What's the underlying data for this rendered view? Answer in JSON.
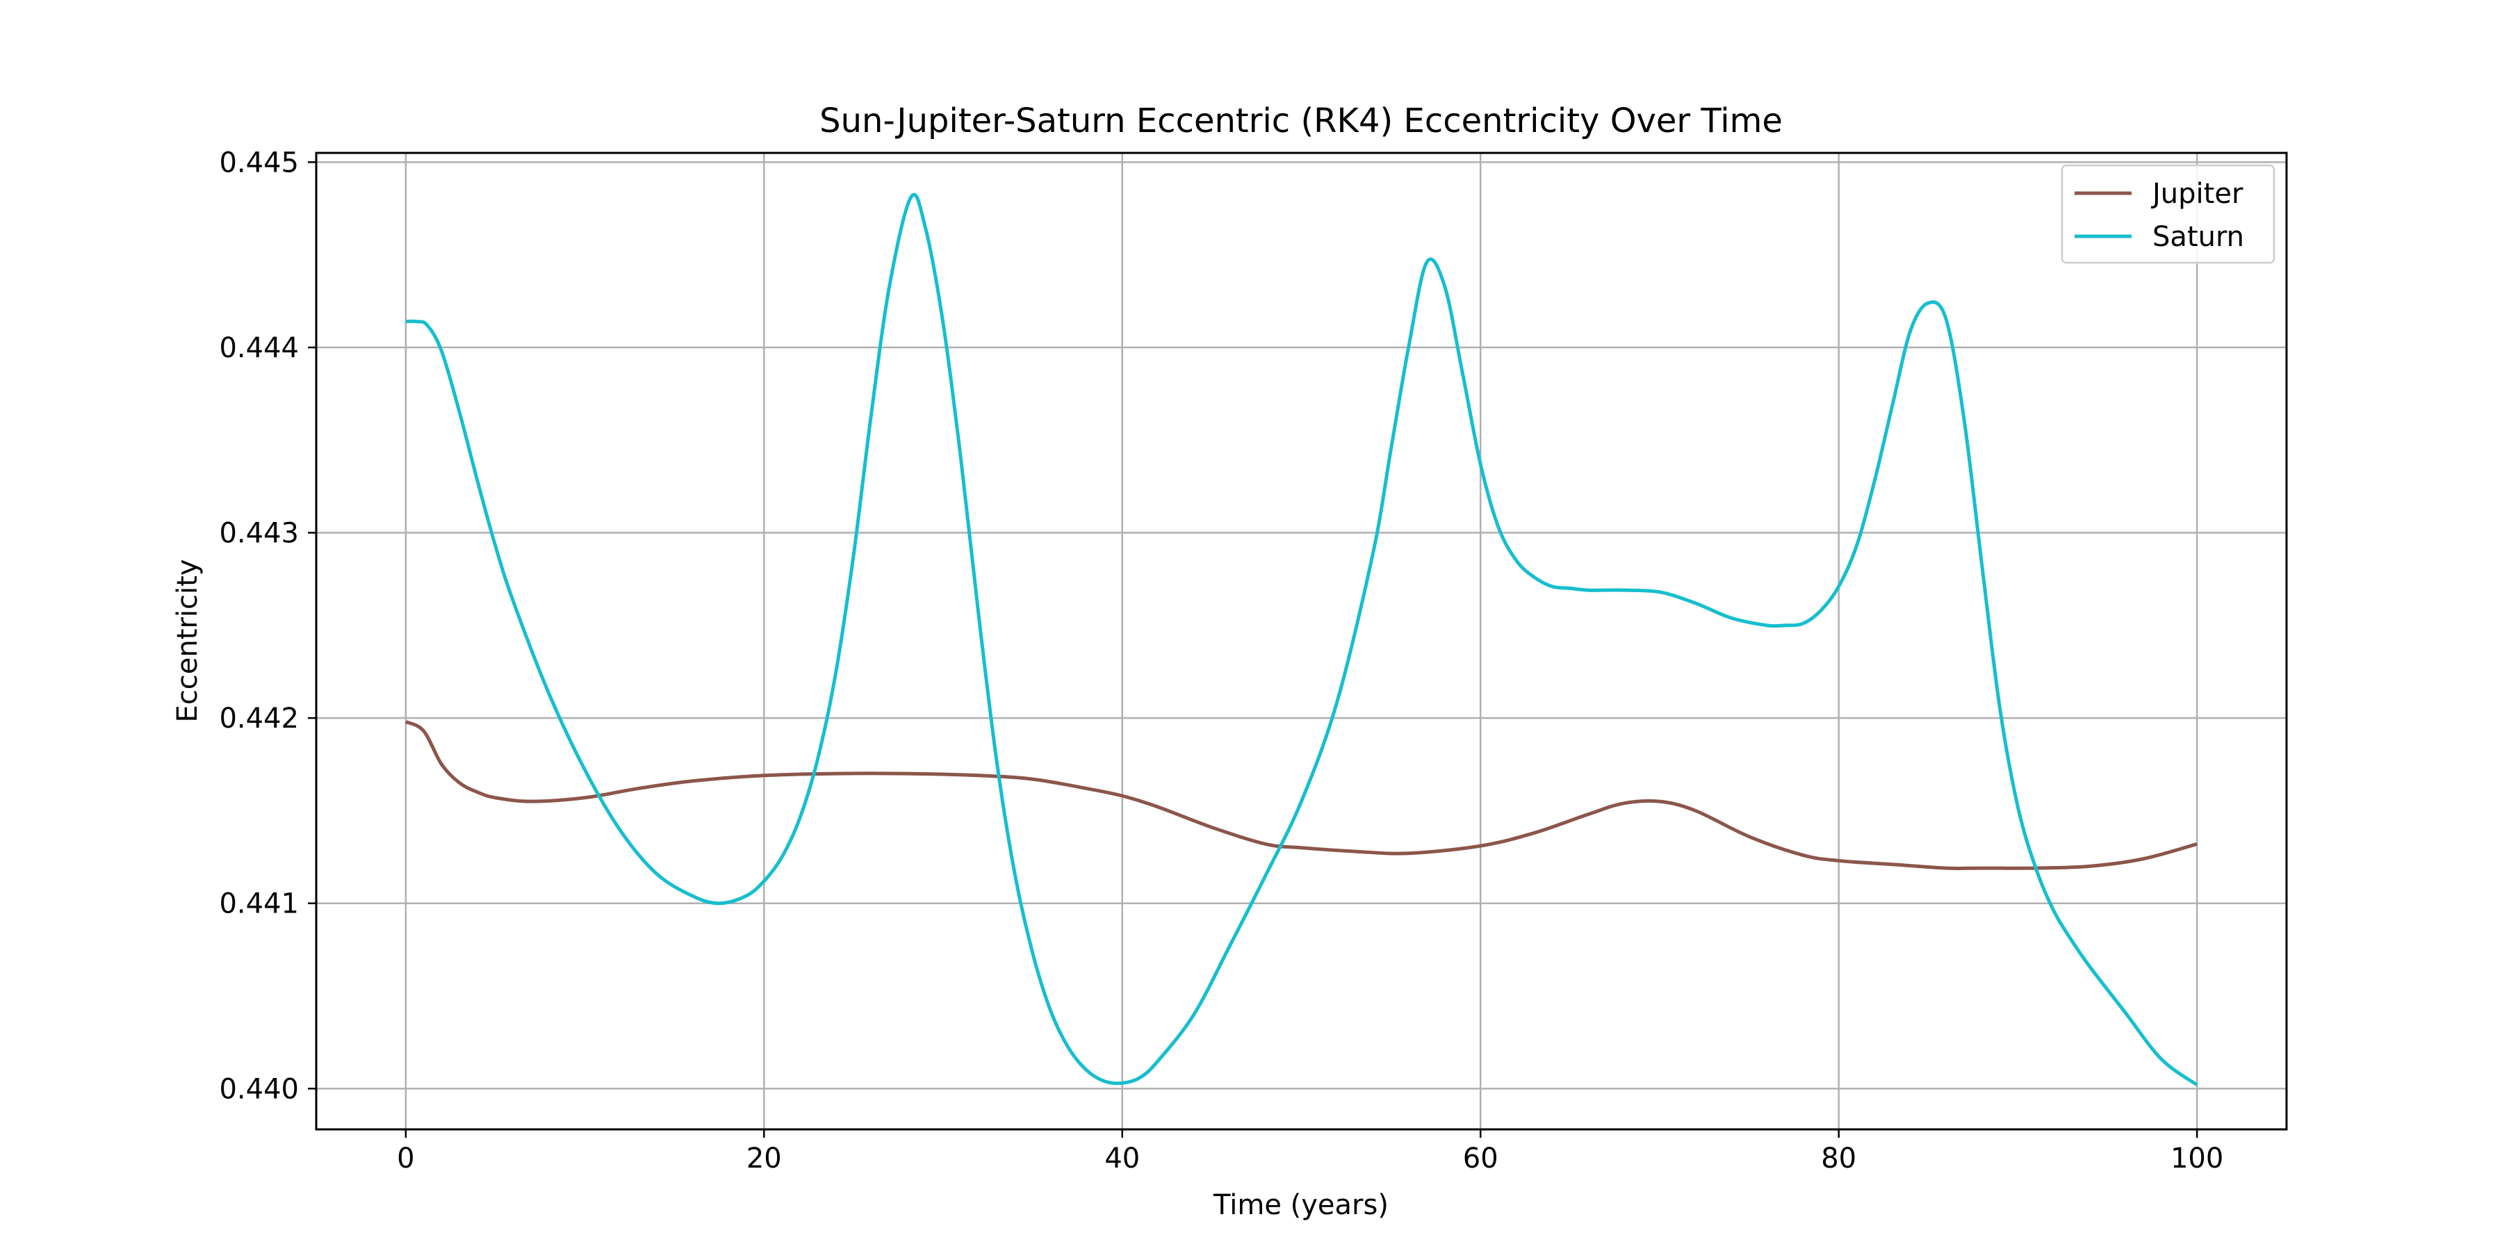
{
  "chart_data": {
    "type": "line",
    "title": "Sun-Jupiter-Saturn Eccentric (RK4) Eccentricity Over Time",
    "xlabel": "Time (years)",
    "ylabel": "Eccentricity",
    "xlim": [
      -5,
      105
    ],
    "ylim": [
      0.43978,
      0.44505
    ],
    "xticks": [
      0,
      20,
      40,
      60,
      80,
      100
    ],
    "yticks": [
      0.44,
      0.441,
      0.442,
      0.443,
      0.444,
      0.445
    ],
    "ytick_labels": [
      "0.440",
      "0.441",
      "0.442",
      "0.443",
      "0.444",
      "0.445"
    ],
    "grid": true,
    "legend_position": "top-right",
    "series": [
      {
        "name": "Jupiter",
        "color": "#8c564b",
        "x": [
          0,
          1,
          2,
          3,
          4,
          5,
          7,
          10,
          13,
          16,
          20,
          24,
          28,
          32,
          35,
          38,
          40,
          42,
          45,
          48,
          50,
          53,
          56,
          60,
          63,
          66,
          68,
          70,
          72,
          75,
          78,
          80,
          83,
          86,
          88,
          91,
          94,
          97,
          100
        ],
        "y": [
          0.44198,
          0.44193,
          0.44175,
          0.44165,
          0.4416,
          0.44157,
          0.44155,
          0.44157,
          0.44162,
          0.44166,
          0.44169,
          0.4417,
          0.4417,
          0.44169,
          0.44167,
          0.44162,
          0.44158,
          0.44152,
          0.44141,
          0.44132,
          0.4413,
          0.44128,
          0.44127,
          0.44131,
          0.44138,
          0.44148,
          0.44154,
          0.44155,
          0.4415,
          0.44136,
          0.44126,
          0.44123,
          0.44121,
          0.44119,
          0.44119,
          0.44119,
          0.4412,
          0.44124,
          0.44132
        ]
      },
      {
        "name": "Saturn",
        "color": "#17becf",
        "x": [
          0,
          0.6,
          1.2,
          2,
          3,
          4,
          5,
          6,
          8,
          10,
          12,
          14,
          16,
          17.5,
          19,
          20,
          21,
          22,
          23,
          24,
          25,
          26,
          27,
          28.2,
          29,
          30,
          31,
          32,
          33,
          34,
          35,
          36,
          37,
          38,
          39,
          40,
          41,
          42,
          44,
          46,
          48,
          50,
          52,
          54,
          55,
          56,
          57,
          58,
          59,
          60,
          61,
          62,
          63,
          64,
          65,
          66,
          67,
          68,
          70,
          72,
          74,
          76,
          77,
          78,
          79,
          80,
          81,
          82,
          83,
          84,
          85,
          86,
          87,
          88,
          89,
          90,
          91,
          92,
          93,
          94,
          96,
          98,
          100
        ],
        "y": [
          0.44414,
          0.44414,
          0.44412,
          0.44398,
          0.44365,
          0.44328,
          0.44293,
          0.44263,
          0.44213,
          0.44172,
          0.44139,
          0.44116,
          0.44104,
          0.441,
          0.44104,
          0.44112,
          0.44125,
          0.44146,
          0.44178,
          0.44224,
          0.44288,
          0.44365,
          0.44433,
          0.44481,
          0.44465,
          0.44413,
          0.44339,
          0.44254,
          0.44176,
          0.44116,
          0.44073,
          0.44042,
          0.44022,
          0.4401,
          0.44004,
          0.44003,
          0.44006,
          0.44015,
          0.4404,
          0.44077,
          0.44115,
          0.44155,
          0.44209,
          0.44289,
          0.44345,
          0.44401,
          0.44446,
          0.44433,
          0.44386,
          0.44337,
          0.44303,
          0.44285,
          0.44276,
          0.44271,
          0.4427,
          0.44269,
          0.44269,
          0.44269,
          0.44268,
          0.44262,
          0.44254,
          0.4425,
          0.4425,
          0.44251,
          0.44258,
          0.44271,
          0.44293,
          0.44328,
          0.44369,
          0.44409,
          0.44424,
          0.44415,
          0.44361,
          0.44282,
          0.44205,
          0.44152,
          0.44119,
          0.44096,
          0.4408,
          0.44066,
          0.44041,
          0.44016,
          0.44002
        ]
      }
    ]
  }
}
